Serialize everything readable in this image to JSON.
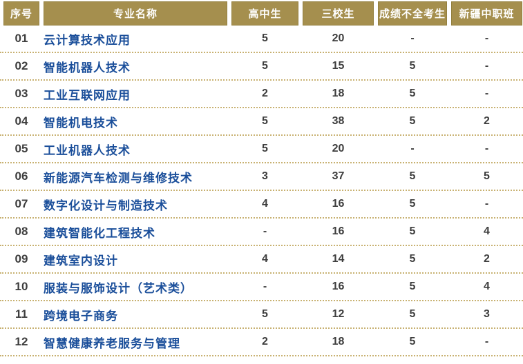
{
  "colors": {
    "header_bg": "#a58f4e",
    "header_border": "#93803f",
    "header_text": "#ffffff",
    "major_text": "#1a4e9a",
    "index_text": "#3d3d3d",
    "value_text": "#3d3d3d",
    "dotted_line": "#c8b171"
  },
  "chart_data": {
    "type": "table",
    "title": "",
    "columns": [
      "序号",
      "专业名称",
      "高中生",
      "三校生",
      "成绩不全考生",
      "新疆中职班"
    ],
    "rows": [
      [
        "01",
        "云计算技术应用",
        "5",
        "20",
        "-",
        "-"
      ],
      [
        "02",
        "智能机器人技术",
        "5",
        "15",
        "5",
        "-"
      ],
      [
        "03",
        "工业互联网应用",
        "2",
        "18",
        "5",
        "-"
      ],
      [
        "04",
        "智能机电技术",
        "5",
        "38",
        "5",
        "2"
      ],
      [
        "05",
        "工业机器人技术",
        "5",
        "20",
        "-",
        "-"
      ],
      [
        "06",
        "新能源汽车检测与维修技术",
        "3",
        "37",
        "5",
        "5"
      ],
      [
        "07",
        "数字化设计与制造技术",
        "4",
        "16",
        "5",
        "-"
      ],
      [
        "08",
        "建筑智能化工程技术",
        "-",
        "16",
        "5",
        "4"
      ],
      [
        "09",
        "建筑室内设计",
        "4",
        "14",
        "5",
        "2"
      ],
      [
        "10",
        "服装与服饰设计（艺术类）",
        "-",
        "16",
        "5",
        "4"
      ],
      [
        "11",
        "跨境电子商务",
        "5",
        "12",
        "5",
        "3"
      ],
      [
        "12",
        "智慧健康养老服务与管理",
        "2",
        "18",
        "5",
        "-"
      ]
    ]
  }
}
